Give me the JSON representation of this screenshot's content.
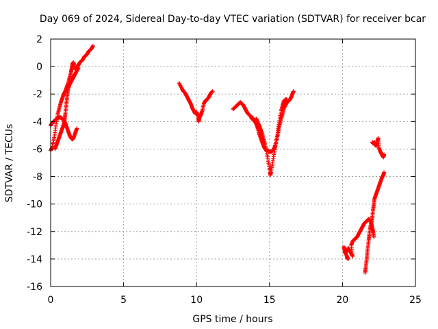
{
  "chart_data": {
    "type": "scatter",
    "title": "Day 069 of 2024, Sidereal Day-to-day VTEC variation (SDTVAR) for receiver bcar",
    "xlabel": "GPS time / hours",
    "ylabel": "SDTVAR / TECUs",
    "xlim": [
      0,
      25
    ],
    "ylim": [
      -16,
      2
    ],
    "xticks": [
      "0",
      "5",
      "10",
      "15",
      "20",
      "25"
    ],
    "yticks": [
      "2",
      "0",
      "-2",
      "-4",
      "-6",
      "-8",
      "-10",
      "-12",
      "-14",
      "-16"
    ],
    "grid": true,
    "marker": "+",
    "series_color": "#ff0000",
    "series": [
      {
        "segments": [
          [
            [
              0.0,
              -6.1
            ],
            [
              0.1,
              -5.9
            ],
            [
              0.2,
              -5.4
            ],
            [
              0.3,
              -4.8
            ],
            [
              0.4,
              -4.0
            ],
            [
              0.5,
              -3.4
            ],
            [
              0.6,
              -3.0
            ],
            [
              0.7,
              -2.6
            ],
            [
              0.8,
              -2.3
            ],
            [
              0.9,
              -2.0
            ],
            [
              1.0,
              -1.8
            ],
            [
              1.1,
              -1.5
            ],
            [
              1.2,
              -1.2
            ],
            [
              1.3,
              -0.8
            ],
            [
              1.4,
              -0.4
            ],
            [
              1.45,
              -0.1
            ],
            [
              1.5,
              0.2
            ],
            [
              1.55,
              0.3
            ],
            [
              1.6,
              0.2
            ],
            [
              1.7,
              -0.2
            ],
            [
              1.8,
              -0.1
            ],
            [
              1.9,
              0.1
            ],
            [
              2.0,
              0.3
            ],
            [
              2.1,
              0.4
            ],
            [
              2.2,
              0.5
            ],
            [
              2.3,
              0.7
            ],
            [
              2.4,
              0.8
            ],
            [
              2.5,
              0.9
            ],
            [
              2.6,
              1.1
            ],
            [
              2.7,
              1.2
            ],
            [
              2.8,
              1.3
            ],
            [
              2.9,
              1.5
            ]
          ],
          [
            [
              0.0,
              -4.3
            ],
            [
              0.1,
              -4.1
            ],
            [
              0.2,
              -4.0
            ],
            [
              0.3,
              -3.9
            ],
            [
              0.4,
              -3.8
            ],
            [
              0.5,
              -3.7
            ],
            [
              0.6,
              -3.7
            ],
            [
              0.7,
              -3.7
            ],
            [
              0.8,
              -3.8
            ],
            [
              0.9,
              -3.9
            ],
            [
              1.0,
              -4.1
            ],
            [
              1.1,
              -4.4
            ],
            [
              1.2,
              -4.7
            ],
            [
              1.3,
              -5.0
            ],
            [
              1.4,
              -5.2
            ],
            [
              1.5,
              -5.3
            ],
            [
              1.6,
              -5.1
            ],
            [
              1.7,
              -4.8
            ],
            [
              1.8,
              -4.5
            ]
          ],
          [
            [
              0.3,
              -6.0
            ],
            [
              0.4,
              -5.7
            ],
            [
              0.5,
              -5.4
            ],
            [
              0.6,
              -5.1
            ],
            [
              0.7,
              -4.8
            ],
            [
              0.8,
              -4.5
            ],
            [
              0.9,
              -4.2
            ],
            [
              0.95,
              -3.9
            ],
            [
              1.0,
              -3.5
            ],
            [
              1.05,
              -3.0
            ],
            [
              1.1,
              -2.5
            ],
            [
              1.15,
              -2.0
            ],
            [
              1.2,
              -1.6
            ],
            [
              1.3,
              -1.3
            ],
            [
              1.4,
              -1.1
            ],
            [
              1.5,
              -0.9
            ],
            [
              1.6,
              -0.7
            ],
            [
              1.7,
              -0.5
            ],
            [
              1.8,
              -0.3
            ],
            [
              1.9,
              -0.1
            ]
          ],
          [
            [
              8.8,
              -1.2
            ],
            [
              9.0,
              -1.6
            ],
            [
              9.1,
              -1.8
            ],
            [
              9.2,
              -1.9
            ],
            [
              9.3,
              -2.1
            ],
            [
              9.4,
              -2.3
            ],
            [
              9.5,
              -2.5
            ],
            [
              9.6,
              -2.7
            ],
            [
              9.7,
              -3.0
            ],
            [
              9.8,
              -3.2
            ],
            [
              9.9,
              -3.4
            ],
            [
              10.0,
              -3.3
            ],
            [
              10.1,
              -3.6
            ],
            [
              10.15,
              -4.0
            ],
            [
              10.2,
              -3.7
            ],
            [
              10.3,
              -3.5
            ],
            [
              10.4,
              -3.2
            ],
            [
              10.5,
              -2.7
            ],
            [
              10.6,
              -2.5
            ],
            [
              10.7,
              -2.4
            ],
            [
              10.8,
              -2.3
            ],
            [
              10.9,
              -2.1
            ],
            [
              11.0,
              -1.9
            ],
            [
              11.1,
              -1.8
            ]
          ],
          [
            [
              12.5,
              -3.1
            ],
            [
              12.6,
              -3.0
            ],
            [
              12.7,
              -2.9
            ],
            [
              12.8,
              -2.8
            ],
            [
              12.9,
              -2.7
            ],
            [
              13.0,
              -2.6
            ],
            [
              13.1,
              -2.7
            ],
            [
              13.2,
              -2.8
            ],
            [
              13.3,
              -3.0
            ],
            [
              13.4,
              -3.2
            ],
            [
              13.5,
              -3.4
            ],
            [
              13.6,
              -3.5
            ],
            [
              13.7,
              -3.6
            ],
            [
              13.8,
              -3.8
            ],
            [
              13.9,
              -3.9
            ],
            [
              14.0,
              -4.0
            ],
            [
              14.1,
              -3.8
            ],
            [
              14.2,
              -4.1
            ],
            [
              14.3,
              -4.3
            ],
            [
              14.4,
              -4.6
            ],
            [
              14.5,
              -4.9
            ],
            [
              14.6,
              -5.3
            ],
            [
              14.7,
              -5.7
            ],
            [
              14.8,
              -6.2
            ],
            [
              14.9,
              -6.8
            ],
            [
              15.0,
              -7.4
            ],
            [
              15.05,
              -7.9
            ],
            [
              15.1,
              -7.7
            ],
            [
              15.2,
              -7.1
            ],
            [
              15.3,
              -6.4
            ],
            [
              15.4,
              -5.8
            ],
            [
              15.5,
              -5.3
            ],
            [
              15.6,
              -4.8
            ],
            [
              15.7,
              -4.2
            ],
            [
              15.8,
              -3.8
            ],
            [
              15.9,
              -3.4
            ],
            [
              16.0,
              -3.0
            ],
            [
              16.1,
              -2.8
            ],
            [
              16.2,
              -2.6
            ],
            [
              16.3,
              -2.5
            ],
            [
              16.4,
              -2.4
            ],
            [
              16.5,
              -2.2
            ],
            [
              16.6,
              -1.9
            ],
            [
              16.65,
              -1.8
            ]
          ],
          [
            [
              13.8,
              -3.7
            ],
            [
              13.9,
              -3.8
            ],
            [
              14.0,
              -4.0
            ],
            [
              14.1,
              -4.2
            ],
            [
              14.2,
              -4.5
            ],
            [
              14.3,
              -4.9
            ],
            [
              14.4,
              -5.2
            ],
            [
              14.5,
              -5.5
            ],
            [
              14.6,
              -5.8
            ],
            [
              14.7,
              -6.0
            ],
            [
              14.8,
              -6.1
            ],
            [
              14.9,
              -6.1
            ],
            [
              15.0,
              -6.2
            ],
            [
              15.1,
              -6.2
            ],
            [
              15.2,
              -6.1
            ],
            [
              15.3,
              -6.0
            ],
            [
              15.4,
              -5.7
            ],
            [
              15.5,
              -5.2
            ],
            [
              15.6,
              -4.5
            ],
            [
              15.7,
              -3.8
            ],
            [
              15.8,
              -3.2
            ],
            [
              15.9,
              -2.8
            ],
            [
              16.0,
              -2.5
            ],
            [
              16.1,
              -2.4
            ],
            [
              16.2,
              -2.4
            ]
          ],
          [
            [
              20.1,
              -13.1
            ],
            [
              20.15,
              -13.4
            ],
            [
              20.2,
              -13.6
            ],
            [
              20.3,
              -13.4
            ],
            [
              20.4,
              -13.2
            ],
            [
              20.5,
              -13.4
            ],
            [
              20.6,
              -13.6
            ],
            [
              20.7,
              -13.8
            ],
            [
              20.6,
              -13.0
            ],
            [
              20.7,
              -12.7
            ],
            [
              20.8,
              -12.6
            ],
            [
              20.9,
              -12.5
            ],
            [
              21.0,
              -12.4
            ],
            [
              21.1,
              -12.2
            ],
            [
              21.2,
              -12.0
            ],
            [
              21.3,
              -11.8
            ],
            [
              21.4,
              -11.6
            ],
            [
              21.5,
              -11.4
            ],
            [
              21.6,
              -11.3
            ],
            [
              21.7,
              -11.2
            ],
            [
              21.8,
              -11.1
            ],
            [
              21.9,
              -11.2
            ],
            [
              22.0,
              -11.5
            ],
            [
              22.05,
              -11.8
            ],
            [
              22.1,
              -12.0
            ],
            [
              22.15,
              -12.4
            ]
          ],
          [
            [
              20.2,
              -13.5
            ],
            [
              20.3,
              -13.8
            ],
            [
              20.4,
              -14.0
            ],
            [
              20.3,
              -13.9
            ]
          ],
          [
            [
              21.55,
              -15.0
            ],
            [
              21.6,
              -14.6
            ],
            [
              21.65,
              -14.1
            ],
            [
              21.7,
              -13.6
            ],
            [
              21.75,
              -13.1
            ],
            [
              21.8,
              -12.6
            ],
            [
              21.85,
              -12.2
            ],
            [
              21.9,
              -11.7
            ],
            [
              22.0,
              -11.3
            ],
            [
              22.05,
              -10.9
            ],
            [
              22.1,
              -10.4
            ],
            [
              22.15,
              -10.0
            ],
            [
              22.2,
              -9.6
            ],
            [
              22.3,
              -9.3
            ],
            [
              22.4,
              -9.0
            ],
            [
              22.5,
              -8.7
            ],
            [
              22.6,
              -8.4
            ],
            [
              22.7,
              -8.1
            ],
            [
              22.8,
              -7.9
            ],
            [
              22.85,
              -7.7
            ]
          ],
          [
            [
              22.05,
              -5.5
            ],
            [
              22.1,
              -5.6
            ],
            [
              22.2,
              -5.5
            ],
            [
              22.3,
              -5.8
            ],
            [
              22.4,
              -5.4
            ],
            [
              22.45,
              -5.2
            ],
            [
              22.5,
              -5.9
            ],
            [
              22.6,
              -6.2
            ],
            [
              22.7,
              -6.4
            ],
            [
              22.8,
              -6.6
            ],
            [
              22.85,
              -6.4
            ]
          ]
        ]
      }
    ]
  }
}
